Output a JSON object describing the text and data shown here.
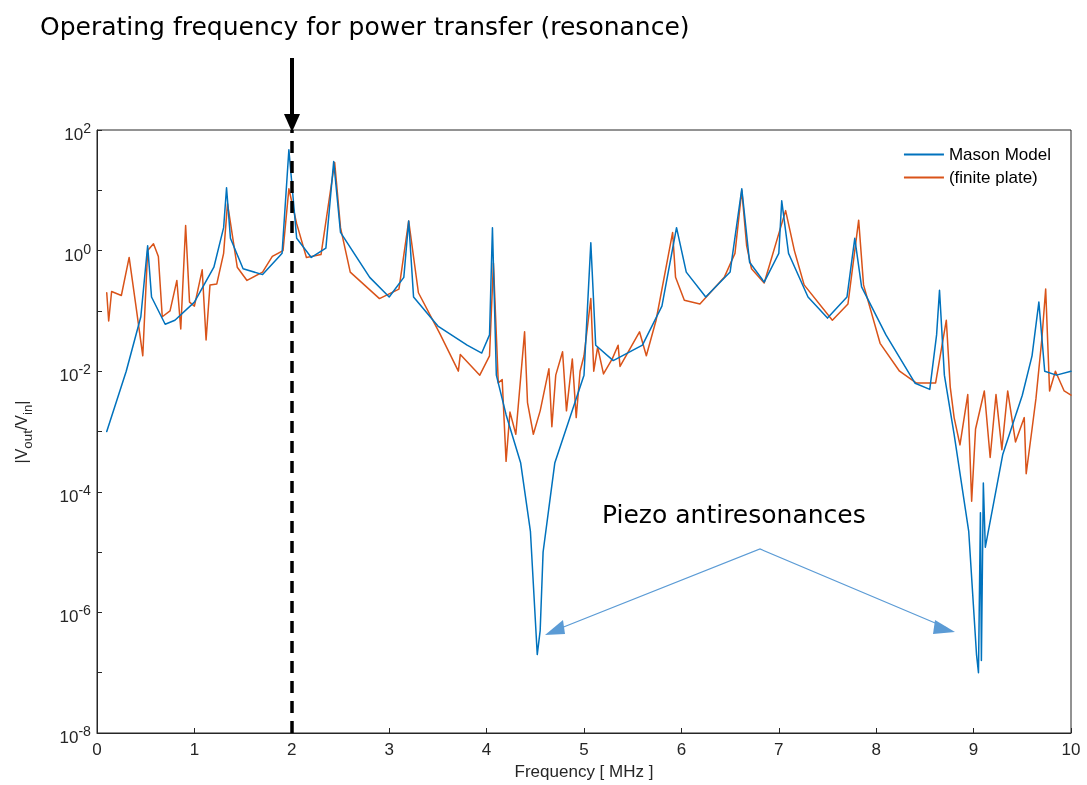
{
  "chart_data": {
    "type": "line",
    "xlabel": "Frequency [ MHz ]",
    "ylabel": "|V$_{out}$/V$_{in}$|",
    "xlim": [
      0,
      10
    ],
    "xticks": [
      0,
      1,
      2,
      3,
      4,
      5,
      6,
      7,
      8,
      9,
      10
    ],
    "ylim": [
      1e-08,
      100
    ],
    "yticks": [
      {
        "value": 1e-08,
        "label": "10$^{-8}$"
      },
      {
        "value": 1e-07,
        "label": null
      },
      {
        "value": 1e-06,
        "label": "10$^{-6}$"
      },
      {
        "value": 1e-05,
        "label": null
      },
      {
        "value": 0.0001,
        "label": "10$^{-4}$"
      },
      {
        "value": 0.001,
        "label": null
      },
      {
        "value": 0.01,
        "label": "10$^{-2}$"
      },
      {
        "value": 0.1,
        "label": null
      },
      {
        "value": 1,
        "label": "10$^{0}$"
      },
      {
        "value": 10,
        "label": null
      },
      {
        "value": 100,
        "label": "10$^{2}$"
      }
    ],
    "log": "y",
    "grid": false,
    "legend": "top right",
    "marker": "none",
    "line_style": "solid",
    "ref_lines": [
      {
        "axis": "x",
        "value": 2,
        "color": "#000000",
        "line_style": "dashed"
      }
    ],
    "annotations": [
      "Operating frequency for power transfer (resonance)",
      "Piezo antiresonances"
    ],
    "series": [
      {
        "name": "Mason Model",
        "color": "#0072bd",
        "x": [
          0.1,
          0.3,
          0.45,
          0.52,
          0.56,
          0.7,
          0.8,
          1.0,
          1.2,
          1.3,
          1.33,
          1.37,
          1.5,
          1.7,
          1.9,
          1.97,
          2.05,
          2.2,
          2.35,
          2.43,
          2.5,
          2.8,
          3.0,
          3.15,
          3.2,
          3.25,
          3.5,
          3.8,
          3.95,
          4.03,
          4.06,
          4.1,
          4.2,
          4.35,
          4.45,
          4.52,
          4.55,
          4.58,
          4.7,
          4.9,
          5.0,
          5.07,
          5.12,
          5.3,
          5.6,
          5.8,
          5.95,
          6.05,
          6.25,
          6.5,
          6.62,
          6.7,
          6.85,
          7.0,
          7.03,
          7.1,
          7.3,
          7.5,
          7.7,
          7.78,
          7.85,
          8.1,
          8.4,
          8.55,
          8.62,
          8.65,
          8.7,
          8.8,
          8.95,
          9.03,
          9.05,
          9.07,
          9.08,
          9.1,
          9.12,
          9.3,
          9.5,
          9.6,
          9.67,
          9.73,
          9.85,
          10.0
        ],
        "values": [
          0.001,
          0.01,
          0.08,
          1.2,
          0.17,
          0.06,
          0.07,
          0.14,
          0.53,
          2.4,
          11,
          1.6,
          0.5,
          0.4,
          0.9,
          47,
          1.6,
          0.77,
          1.1,
          30,
          2,
          0.36,
          0.17,
          0.36,
          3.1,
          0.17,
          0.056,
          0.027,
          0.02,
          0.04,
          2.4,
          0.0086,
          0.0019,
          0.0003,
          2.2e-05,
          2e-07,
          5e-07,
          1e-05,
          0.0003,
          0.0028,
          0.0086,
          1.35,
          0.027,
          0.015,
          0.027,
          0.12,
          2.4,
          0.44,
          0.17,
          0.44,
          10.6,
          0.64,
          0.3,
          0.9,
          6.7,
          0.9,
          0.17,
          0.076,
          0.17,
          1.6,
          0.25,
          0.04,
          0.0063,
          0.005,
          0.04,
          0.22,
          0.0086,
          0.0009,
          2.2e-05,
          2e-07,
          1e-07,
          4.5e-05,
          1.6e-07,
          0.00014,
          1.2e-05,
          0.00042,
          0.004,
          0.018,
          0.14,
          0.01,
          0.0086,
          0.01
        ]
      },
      {
        "name": "(finite plate)",
        "color": "#d95319",
        "x": [
          0.1,
          0.12,
          0.15,
          0.25,
          0.33,
          0.4,
          0.47,
          0.52,
          0.58,
          0.63,
          0.67,
          0.75,
          0.82,
          0.86,
          0.91,
          0.95,
          1.0,
          1.08,
          1.12,
          1.16,
          1.23,
          1.3,
          1.34,
          1.44,
          1.54,
          1.7,
          1.8,
          1.91,
          1.97,
          2.05,
          2.15,
          2.3,
          2.44,
          2.5,
          2.6,
          2.9,
          3.1,
          3.2,
          3.3,
          3.52,
          3.71,
          3.73,
          3.93,
          4.03,
          4.07,
          4.12,
          4.16,
          4.2,
          4.24,
          4.3,
          4.39,
          4.42,
          4.48,
          4.55,
          4.64,
          4.67,
          4.71,
          4.78,
          4.82,
          4.88,
          4.92,
          4.96,
          5.0,
          5.07,
          5.1,
          5.14,
          5.2,
          5.29,
          5.35,
          5.37,
          5.57,
          5.64,
          5.74,
          5.91,
          5.94,
          6.03,
          6.19,
          6.44,
          6.55,
          6.62,
          6.67,
          6.72,
          6.85,
          7.07,
          7.16,
          7.26,
          7.55,
          7.71,
          7.82,
          7.87,
          8.04,
          8.24,
          8.41,
          8.61,
          8.72,
          8.76,
          8.8,
          8.86,
          8.94,
          8.98,
          9.02,
          9.11,
          9.17,
          9.23,
          9.29,
          9.35,
          9.43,
          9.52,
          9.54,
          9.6,
          9.64,
          9.7,
          9.74,
          9.78,
          9.84,
          9.93,
          10.0
        ],
        "values": [
          0.2,
          0.068,
          0.21,
          0.18,
          0.77,
          0.12,
          0.018,
          1.0,
          1.3,
          0.8,
          0.08,
          0.1,
          0.32,
          0.05,
          2.6,
          0.14,
          0.12,
          0.48,
          0.033,
          0.27,
          0.28,
          0.9,
          6,
          0.53,
          0.32,
          0.44,
          0.8,
          1.0,
          10.6,
          2.8,
          0.77,
          0.86,
          29,
          2.4,
          0.44,
          0.16,
          0.23,
          3.1,
          0.2,
          0.042,
          0.01,
          0.019,
          0.0086,
          0.018,
          0.62,
          0.0064,
          0.0073,
          0.00032,
          0.0021,
          0.0009,
          0.045,
          0.003,
          0.0009,
          0.0022,
          0.011,
          0.0012,
          0.0086,
          0.021,
          0.0022,
          0.016,
          0.0017,
          0.01,
          0.018,
          0.16,
          0.01,
          0.025,
          0.009,
          0.016,
          0.027,
          0.012,
          0.045,
          0.018,
          0.07,
          2.0,
          0.36,
          0.15,
          0.13,
          0.36,
          0.9,
          10,
          1.2,
          0.5,
          0.29,
          4.6,
          1.0,
          0.27,
          0.07,
          0.13,
          3.2,
          0.27,
          0.029,
          0.01,
          0.0064,
          0.0064,
          0.07,
          0.0055,
          0.0017,
          0.0006,
          0.0041,
          7e-05,
          0.0011,
          0.0047,
          0.00037,
          0.0041,
          0.0005,
          0.0047,
          0.00067,
          0.0017,
          0.0002,
          0.0011,
          0.0035,
          0.033,
          0.23,
          0.0047,
          0.01,
          0.0047,
          0.004
        ]
      }
    ]
  }
}
